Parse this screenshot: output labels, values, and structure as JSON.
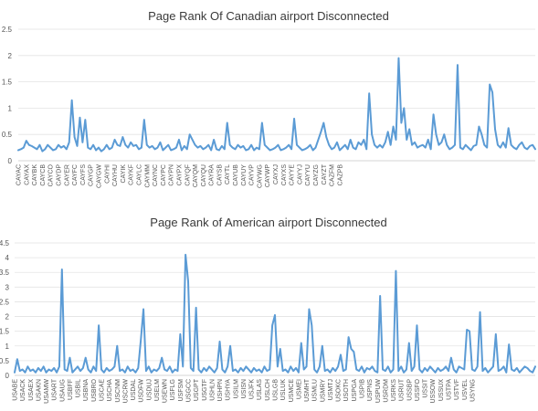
{
  "series_color": "#5b9bd5",
  "chart_data": [
    {
      "type": "line",
      "title": "Page Rank Of Canadian airport Disconnected",
      "xlabel": "",
      "ylabel": "",
      "ylim": [
        0,
        2.5
      ],
      "yticks": [
        "0",
        "0.5",
        "1",
        "1.5",
        "2",
        "2.5"
      ],
      "grid": true,
      "legend": "none",
      "x_tick_labels": [
        "CAYAC",
        "CAYAX",
        "CAYBK",
        "CAYCB",
        "CAYCO",
        "CAYDP",
        "CAYER",
        "CAYFC",
        "CAYFS",
        "CAYGP",
        "CAYGW",
        "CAYHI",
        "CAYHU",
        "CAYIK",
        "CAYKF",
        "CAYLC",
        "CAYMM",
        "CAYNC",
        "CAYPC",
        "CAYPN",
        "CAYPX",
        "CAYQF",
        "CAYQM",
        "CAYQU",
        "CAYRA",
        "CAYSB",
        "CAYTL",
        "CAYUB",
        "CAYUY",
        "CAYVP",
        "CAYWG",
        "CAYWP",
        "CAYXJ",
        "CAYXS",
        "CAYYE",
        "CAYYJ",
        "CAYYU",
        "CAYZG",
        "CAYZT",
        "CAZFM",
        "CAZPB"
      ],
      "points_per_label": 3,
      "series": [
        {
          "values": [
            0.2,
            0.22,
            0.25,
            0.38,
            0.3,
            0.28,
            0.25,
            0.22,
            0.3,
            0.18,
            0.22,
            0.3,
            0.25,
            0.2,
            0.22,
            0.3,
            0.25,
            0.28,
            0.22,
            0.35,
            1.15,
            0.45,
            0.28,
            0.82,
            0.35,
            0.78,
            0.25,
            0.22,
            0.3,
            0.2,
            0.25,
            0.18,
            0.22,
            0.3,
            0.22,
            0.25,
            0.4,
            0.3,
            0.28,
            0.45,
            0.3,
            0.25,
            0.35,
            0.28,
            0.3,
            0.22,
            0.25,
            0.78,
            0.3,
            0.25,
            0.28,
            0.22,
            0.25,
            0.35,
            0.2,
            0.25,
            0.3,
            0.2,
            0.22,
            0.25,
            0.4,
            0.2,
            0.28,
            0.22,
            0.5,
            0.4,
            0.3,
            0.25,
            0.28,
            0.22,
            0.25,
            0.3,
            0.2,
            0.4,
            0.22,
            0.2,
            0.28,
            0.22,
            0.72,
            0.3,
            0.25,
            0.22,
            0.3,
            0.25,
            0.28,
            0.2,
            0.22,
            0.3,
            0.2,
            0.25,
            0.22,
            0.72,
            0.3,
            0.25,
            0.2,
            0.22,
            0.25,
            0.3,
            0.2,
            0.22,
            0.25,
            0.3,
            0.22,
            0.8,
            0.3,
            0.25,
            0.2,
            0.22,
            0.25,
            0.3,
            0.2,
            0.25,
            0.4,
            0.55,
            0.72,
            0.45,
            0.3,
            0.22,
            0.25,
            0.35,
            0.2,
            0.25,
            0.3,
            0.22,
            0.4,
            0.25,
            0.22,
            0.35,
            0.3,
            0.4,
            0.22,
            1.28,
            0.5,
            0.3,
            0.25,
            0.3,
            0.25,
            0.35,
            0.55,
            0.3,
            0.65,
            0.4,
            1.95,
            0.72,
            1.0,
            0.4,
            0.6,
            0.3,
            0.35,
            0.25,
            0.28,
            0.3,
            0.25,
            0.4,
            0.22,
            0.88,
            0.5,
            0.3,
            0.35,
            0.5,
            0.3,
            0.22,
            0.25,
            0.3,
            1.82,
            0.25,
            0.22,
            0.3,
            0.25,
            0.2,
            0.28,
            0.3,
            0.65,
            0.5,
            0.3,
            0.25,
            1.45,
            1.3,
            0.6,
            0.3,
            0.25,
            0.35,
            0.25,
            0.62,
            0.3,
            0.25,
            0.22,
            0.3,
            0.35,
            0.25,
            0.22,
            0.28,
            0.3,
            0.22
          ]
        }
      ]
    },
    {
      "type": "line",
      "title": "Page Rank of American airport Disconnected",
      "xlabel": "",
      "ylabel": "",
      "ylim": [
        0,
        4.5
      ],
      "yticks": [
        "0",
        "0.5",
        "1",
        "1.5",
        "2",
        "2.5",
        "3",
        "3.5",
        "4",
        "4.5"
      ],
      "grid": true,
      "legend": "none",
      "x_tick_labels": [
        "USABE",
        "USACK",
        "USAEX",
        "USAKN",
        "USAMW",
        "USART",
        "USAUG",
        "USBFF",
        "USBIL",
        "USBNA",
        "USBRO",
        "USCAE",
        "USCHA",
        "USCNM",
        "USCRW",
        "USDAL",
        "USDFW",
        "USDUJ",
        "USELM",
        "USEWN",
        "USFLG",
        "USFSM",
        "USGCC",
        "USGPT",
        "USGTF",
        "USHLN",
        "USHPN",
        "USHYA",
        "USILM",
        "USISN",
        "USJFK",
        "USLAS",
        "USLCH",
        "USLGB",
        "USLUK",
        "USMCE",
        "USMEI",
        "USMHT",
        "USMLU",
        "USMRY",
        "USMTJ",
        "USOKC",
        "USOTH",
        "USPGA",
        "USPIB",
        "USPNS",
        "USPUW",
        "USRDM",
        "USRKS",
        "USRUT",
        "USSBP",
        "USSFO",
        "USSIT",
        "USSOW",
        "USSUX",
        "USTPA",
        "USTVF",
        "USVEL",
        "USYNG"
      ],
      "points_per_label": 3,
      "series": [
        {
          "values": [
            0.1,
            0.55,
            0.15,
            0.2,
            0.1,
            0.3,
            0.15,
            0.2,
            0.1,
            0.25,
            0.15,
            0.3,
            0.1,
            0.2,
            0.15,
            0.25,
            0.1,
            0.3,
            3.6,
            0.2,
            0.15,
            0.6,
            0.1,
            0.2,
            0.3,
            0.15,
            0.25,
            0.6,
            0.2,
            0.1,
            0.3,
            0.15,
            1.7,
            0.2,
            0.1,
            0.25,
            0.15,
            0.2,
            0.3,
            1.0,
            0.15,
            0.2,
            0.1,
            0.3,
            0.15,
            0.2,
            0.1,
            0.25,
            1.2,
            2.25,
            0.15,
            0.3,
            0.1,
            0.2,
            0.15,
            0.25,
            0.6,
            0.2,
            0.15,
            0.3,
            0.1,
            0.2,
            0.15,
            1.4,
            0.3,
            4.1,
            3.2,
            0.25,
            0.15,
            2.3,
            0.2,
            0.1,
            0.25,
            0.15,
            0.3,
            0.2,
            0.1,
            0.25,
            1.15,
            0.2,
            0.1,
            0.3,
            1.0,
            0.15,
            0.2,
            0.1,
            0.25,
            0.15,
            0.3,
            0.2,
            0.1,
            0.25,
            0.15,
            0.2,
            0.1,
            0.3,
            0.15,
            0.2,
            1.7,
            2.05,
            0.3,
            0.9,
            0.15,
            0.2,
            0.1,
            0.3,
            0.15,
            0.25,
            0.1,
            1.1,
            0.2,
            0.3,
            2.25,
            1.7,
            0.2,
            0.1,
            0.3,
            1.0,
            0.15,
            0.2,
            0.1,
            0.25,
            0.15,
            0.3,
            0.7,
            0.15,
            0.2,
            1.3,
            0.9,
            0.8,
            0.2,
            0.15,
            0.3,
            0.1,
            0.25,
            0.2,
            0.3,
            0.15,
            0.1,
            2.7,
            0.2,
            0.15,
            0.3,
            0.1,
            0.2,
            3.55,
            0.15,
            0.3,
            0.1,
            0.2,
            1.1,
            0.15,
            0.3,
            1.7,
            0.2,
            0.1,
            0.25,
            0.15,
            0.3,
            0.2,
            0.1,
            0.25,
            0.15,
            0.2,
            0.3,
            0.15,
            0.6,
            0.2,
            0.1,
            0.3,
            0.25,
            0.2,
            1.55,
            1.5,
            0.2,
            0.15,
            0.3,
            2.15,
            0.15,
            0.25,
            0.1,
            0.2,
            0.3,
            1.4,
            0.15,
            0.2,
            0.3,
            0.1,
            1.05,
            0.2,
            0.15,
            0.25,
            0.1,
            0.2,
            0.3,
            0.25,
            0.15,
            0.1,
            0.3
          ]
        }
      ]
    }
  ]
}
